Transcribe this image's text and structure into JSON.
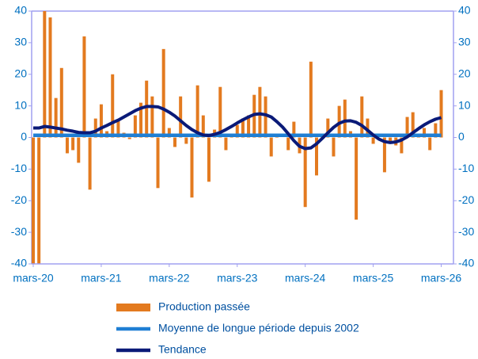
{
  "chart_data": {
    "type": "bar",
    "categories": [
      "mars-20",
      null,
      null,
      null,
      null,
      null,
      null,
      null,
      null,
      null,
      null,
      null,
      "mars-21",
      null,
      null,
      null,
      null,
      null,
      null,
      null,
      null,
      null,
      null,
      null,
      "mars-22",
      null,
      null,
      null,
      null,
      null,
      null,
      null,
      null,
      null,
      null,
      null,
      "mars-23",
      null,
      null,
      null,
      null,
      null,
      null,
      null,
      null,
      null,
      null,
      null,
      "mars-24",
      null,
      null,
      null,
      null,
      null,
      null,
      null,
      null,
      null,
      null,
      null,
      "mars-25",
      null,
      null,
      null,
      null,
      null,
      null,
      null,
      null,
      null,
      null,
      null,
      "mars-26"
    ],
    "series": [
      {
        "name": "Production passée",
        "color": "#e37a1f",
        "kind": "bar",
        "values": [
          -40,
          -40,
          40,
          38,
          12.5,
          22,
          -5,
          -4,
          -8,
          32,
          -16.5,
          6,
          10.5,
          2,
          20,
          5.5,
          1.5,
          -0.5,
          7,
          11,
          18,
          13,
          -16,
          28,
          3,
          -3,
          13,
          -2,
          -19,
          16.5,
          7,
          -14,
          2.5,
          16,
          -4,
          1,
          4,
          6,
          7,
          13.5,
          16,
          13,
          -6,
          0.5,
          0,
          -4,
          5,
          -5,
          -22,
          24,
          -12,
          0.5,
          6,
          -6,
          10,
          12,
          2,
          -26,
          13,
          6,
          -2,
          0,
          -11,
          -2,
          -2.5,
          -5,
          6.5,
          8,
          1,
          3,
          -4,
          4.5,
          15
        ]
      },
      {
        "name": "Moyenne de longue période depuis 2002",
        "color": "#1f7fd4",
        "kind": "line",
        "values": [
          0.7,
          0.7,
          0.7,
          0.7,
          0.7,
          0.7,
          0.7,
          0.7,
          0.7,
          0.7,
          0.7,
          0.7,
          0.7,
          0.7,
          0.7,
          0.7,
          0.7,
          0.7,
          0.7,
          0.7,
          0.7,
          0.7,
          0.7,
          0.7,
          0.7,
          0.7,
          0.7,
          0.7,
          0.7,
          0.7,
          0.7,
          0.7,
          0.7,
          0.7,
          0.7,
          0.7,
          0.7,
          0.7,
          0.7,
          0.7,
          0.7,
          0.7,
          0.7,
          0.7,
          0.7,
          0.7,
          0.7,
          0.7,
          0.7,
          0.7,
          0.7,
          0.7,
          0.7,
          0.7,
          0.7,
          0.7,
          0.7,
          0.7,
          0.7,
          0.7,
          0.7,
          0.7,
          0.7,
          0.7,
          0.7,
          0.7,
          0.7,
          0.7,
          0.7,
          0.7,
          0.7,
          0.7,
          0.7
        ]
      },
      {
        "name": "Tendance",
        "color": "#0a1a78",
        "kind": "line",
        "values": [
          3,
          3,
          3.5,
          3.3,
          3,
          2.7,
          2.3,
          2,
          1.6,
          1.5,
          1.5,
          2,
          3,
          3.8,
          4.7,
          5.5,
          6.5,
          7.5,
          8.5,
          9.3,
          9.8,
          9.8,
          9.7,
          9,
          8,
          6.8,
          5.3,
          3.8,
          2.5,
          1.5,
          0.8,
          0.6,
          1,
          1.6,
          2.5,
          3.5,
          4.6,
          5.6,
          6.5,
          7.3,
          7.5,
          7.2,
          6.5,
          5,
          3.3,
          1.2,
          -1,
          -2.8,
          -3.5,
          -3.3,
          -2,
          -0.3,
          1.5,
          3.2,
          4.5,
          5.2,
          5.3,
          4.8,
          3.8,
          2.3,
          0.8,
          -0.5,
          -1.3,
          -1.6,
          -1.4,
          -0.8,
          0.2,
          1.5,
          2.8,
          4,
          5,
          5.8,
          6.3
        ]
      }
    ],
    "ylim": [
      -40,
      40
    ],
    "yticks": [
      -40,
      -30,
      -20,
      -10,
      0,
      10,
      20,
      30,
      40
    ],
    "y2lim": [
      -40,
      40
    ],
    "y2ticks": [
      -40,
      -30,
      -20,
      -10,
      0,
      10,
      20,
      30,
      40
    ],
    "grid": false
  }
}
